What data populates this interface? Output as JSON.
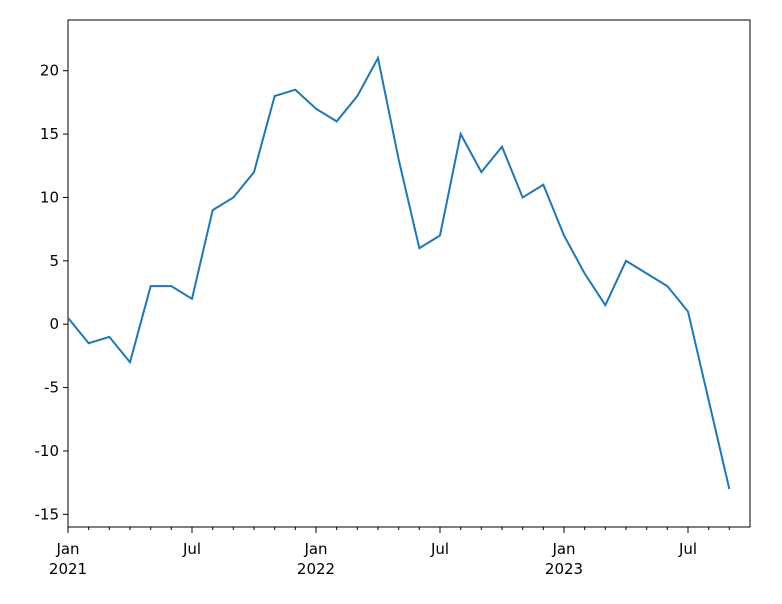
{
  "chart_data": {
    "type": "line",
    "x": [
      "2021-01",
      "2021-02",
      "2021-03",
      "2021-04",
      "2021-05",
      "2021-06",
      "2021-07",
      "2021-08",
      "2021-09",
      "2021-10",
      "2021-11",
      "2021-12",
      "2022-01",
      "2022-02",
      "2022-03",
      "2022-04",
      "2022-05",
      "2022-06",
      "2022-07",
      "2022-08",
      "2022-09",
      "2022-10",
      "2022-11",
      "2022-12",
      "2023-01",
      "2023-02",
      "2023-03",
      "2023-04",
      "2023-05",
      "2023-06",
      "2023-07",
      "2023-08",
      "2023-09"
    ],
    "series": [
      {
        "color": "#1f77b4",
        "values": [
          0.5,
          -1.5,
          -1,
          -3,
          3,
          3,
          2,
          9,
          10,
          12,
          18,
          18.5,
          17,
          16,
          18,
          21,
          13,
          6,
          7,
          15,
          12,
          14,
          10,
          11,
          7,
          4,
          1.5,
          5,
          4,
          3,
          1,
          -6,
          -13
        ]
      }
    ],
    "xlim": [
      "2021-01",
      "2023-10"
    ],
    "xticks": [
      {
        "value": "2021-01",
        "label": "Jan\n2021"
      },
      {
        "value": "2021-07",
        "label": "Jul"
      },
      {
        "value": "2022-01",
        "label": "Jan\n2022"
      },
      {
        "value": "2022-07",
        "label": "Jul"
      },
      {
        "value": "2023-01",
        "label": "Jan\n2023"
      },
      {
        "value": "2023-07",
        "label": "Jul"
      }
    ],
    "ylim": [
      -16,
      24
    ],
    "yticks": [
      -15,
      -10,
      -5,
      0,
      5,
      10,
      15,
      20
    ],
    "grid": false
  }
}
